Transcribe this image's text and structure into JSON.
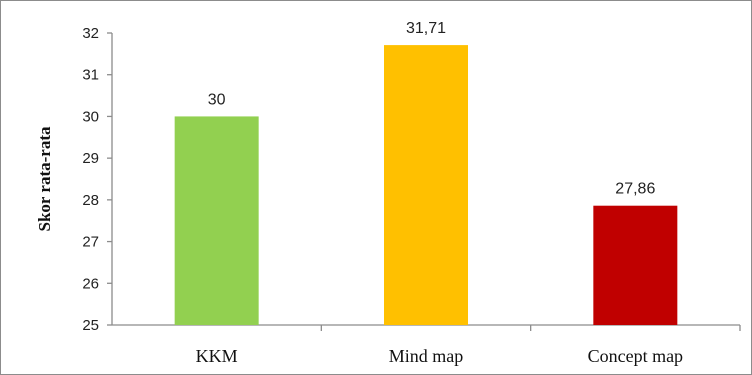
{
  "chart_data": {
    "type": "bar",
    "categories": [
      "KKM",
      "Mind map",
      "Concept map"
    ],
    "values": [
      30,
      31.71,
      27.86
    ],
    "value_labels": [
      "30",
      "31,71",
      "27,86"
    ],
    "colors": [
      "#92d050",
      "#ffc000",
      "#c00000"
    ],
    "title": "",
    "xlabel": "",
    "ylabel": "Skor rata-rata",
    "ylim": [
      25,
      32
    ],
    "yticks": [
      "25",
      "26",
      "27",
      "28",
      "29",
      "30",
      "31",
      "32"
    ],
    "grid": false,
    "legend": "none"
  }
}
